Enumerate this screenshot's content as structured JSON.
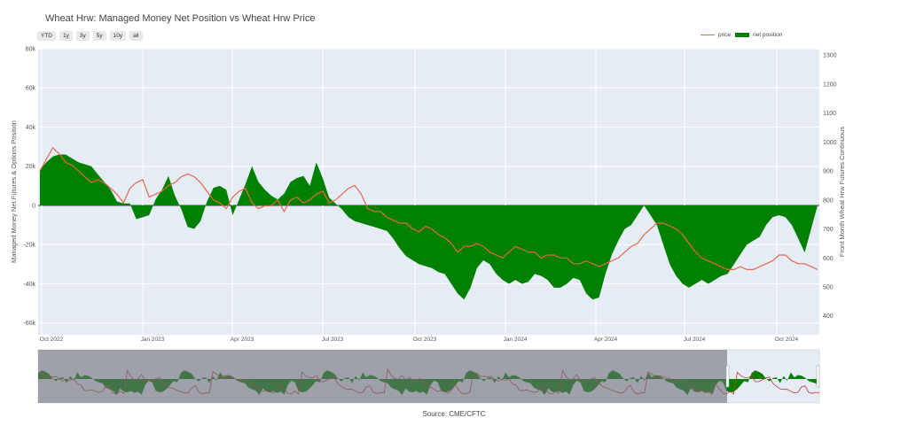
{
  "chart_data": {
    "type": "area",
    "title": "Wheat Hrw: Managed Money Net Position vs Wheat Hrw Price",
    "source": "Source: CME/CFTC",
    "range_buttons": [
      "YTD",
      "1y",
      "3y",
      "5y",
      "10y",
      "all"
    ],
    "ylabel_left": "Managed Money Net Futures & Options Position",
    "ylabel_right": "Front Month Wheat Hrw Futures Continuous",
    "y_left_ticks": [
      "80k",
      "60k",
      "40k",
      "20k",
      "0",
      "-20k",
      "-40k",
      "-60k"
    ],
    "y_right_ticks": [
      "1300",
      "1200",
      "1100",
      "1000",
      "900",
      "800",
      "700",
      "600",
      "500",
      "400"
    ],
    "x_ticks": [
      "Oct 2022",
      "Jan 2023",
      "Apr 2023",
      "Jul 2023",
      "Oct 2023",
      "Jan 2024",
      "Apr 2024",
      "Jul 2024",
      "Oct 2024"
    ],
    "ylim_left": [
      -66000,
      80000
    ],
    "ylim_right": [
      335,
      1322
    ],
    "series": [
      {
        "name": "price",
        "color": "#e0694b",
        "axis": "right",
        "values": [
          900,
          940,
          980,
          960,
          930,
          920,
          900,
          880,
          860,
          870,
          860,
          840,
          820,
          790,
          840,
          860,
          870,
          810,
          820,
          830,
          850,
          860,
          880,
          890,
          880,
          860,
          830,
          800,
          790,
          770,
          810,
          830,
          840,
          790,
          770,
          780,
          780,
          800,
          760,
          800,
          810,
          790,
          800,
          820,
          830,
          790,
          800,
          820,
          840,
          850,
          820,
          770,
          760,
          760,
          740,
          730,
          720,
          720,
          700,
          690,
          710,
          700,
          680,
          670,
          650,
          620,
          640,
          640,
          650,
          640,
          620,
          610,
          600,
          620,
          640,
          630,
          620,
          620,
          600,
          610,
          610,
          600,
          600,
          580,
          580,
          590,
          580,
          570,
          580,
          590,
          600,
          620,
          640,
          650,
          680,
          700,
          720,
          720,
          710,
          700,
          680,
          650,
          620,
          600,
          590,
          580,
          570,
          560,
          560,
          570,
          560,
          560,
          570,
          580,
          590,
          610,
          610,
          590,
          580,
          580,
          570,
          560
        ]
      },
      {
        "name": "net position",
        "color": "#008000",
        "axis": "left",
        "values": [
          18000,
          22000,
          25000,
          26000,
          26000,
          24000,
          22000,
          21000,
          20000,
          16000,
          12000,
          8000,
          2000,
          1000,
          1000,
          -7000,
          -6000,
          -5000,
          3000,
          8000,
          15000,
          5000,
          -2000,
          -11000,
          -12000,
          -8000,
          2000,
          9000,
          10000,
          8000,
          -5000,
          3000,
          11000,
          20000,
          12000,
          8000,
          5000,
          3000,
          6000,
          12000,
          14000,
          15000,
          10000,
          22000,
          14000,
          4000,
          1000,
          -2000,
          -6000,
          -8000,
          -9000,
          -10000,
          -11000,
          -12000,
          -13000,
          -17000,
          -22000,
          -26000,
          -28000,
          -30000,
          -31000,
          -32000,
          -34000,
          -35000,
          -40000,
          -45000,
          -48000,
          -42000,
          -32000,
          -28000,
          -30000,
          -35000,
          -38000,
          -40000,
          -38000,
          -40000,
          -39000,
          -35000,
          -36000,
          -38000,
          -42000,
          -42000,
          -40000,
          -37000,
          -38000,
          -45000,
          -48000,
          -47000,
          -35000,
          -25000,
          -18000,
          -12000,
          -10000,
          -5000,
          0,
          -5000,
          -10000,
          -20000,
          -30000,
          -36000,
          -40000,
          -42000,
          -40000,
          -38000,
          -40000,
          -38000,
          -36000,
          -35000,
          -30000,
          -25000,
          -20000,
          -18000,
          -16000,
          -10000,
          -6000,
          -5000,
          -6000,
          -10000,
          -17000,
          -24000
        ]
      }
    ],
    "navigator": {
      "selected_range": [
        "Oct 2022",
        "Nov 2024"
      ]
    }
  }
}
